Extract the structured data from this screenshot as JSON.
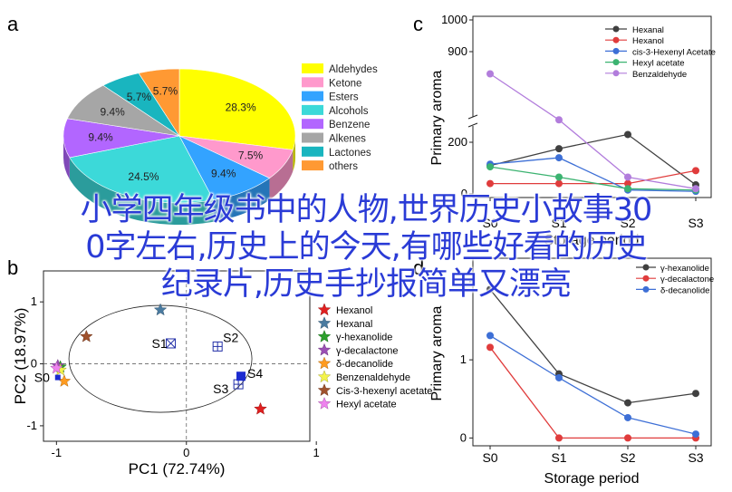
{
  "overlay": {
    "line1": "小学四年级书中的人物,世界历史小故事30",
    "line2": "0字左右,历史上的今天,有哪些好看的历史",
    "line3": "纪录片,历史手抄报简单又漂亮"
  },
  "chart_data": [
    {
      "panel": "a",
      "type": "pie",
      "title": "",
      "labels": [
        "Aldehydes",
        "Ketone",
        "Esters",
        "Alcohols",
        "Benzene",
        "Alkenes",
        "Lactones",
        "others"
      ],
      "values": [
        28.3,
        7.5,
        9.4,
        24.5,
        9.4,
        9.4,
        5.7,
        5.7
      ],
      "slice_labels": [
        "28.3%",
        "7.5%",
        "9.4%",
        "24.5%",
        "9.4%",
        "9.4%",
        "5.7%",
        "5.7%"
      ],
      "colors": [
        "#ffff00",
        "#ff99cc",
        "#33a3ff",
        "#3cd9d9",
        "#b266ff",
        "#a6a6a6",
        "#19b5bf",
        "#ff9933"
      ],
      "legend_position": "right"
    },
    {
      "panel": "b",
      "type": "scatter",
      "xlabel": "PC1 (72.74%)",
      "ylabel": "PC2 (18.97%)",
      "xlim": [
        -1.1,
        0.95
      ],
      "ylim": [
        -1.25,
        1.5
      ],
      "xticks": [
        "-1",
        "0",
        "1"
      ],
      "yticks": [
        "-1",
        "0",
        "1"
      ],
      "series": [
        {
          "name": "Hexanol",
          "color": "#e02020",
          "symbol": "star",
          "x": 0.57,
          "y": -0.73
        },
        {
          "name": "Hexanal",
          "color": "#4a7ba0",
          "symbol": "star",
          "x": -0.2,
          "y": 0.87
        },
        {
          "name": "γ-hexanolide",
          "color": "#2ca02c",
          "symbol": "star",
          "x": -0.97,
          "y": -0.05
        },
        {
          "name": "γ-decalactone",
          "color": "#9b4fb5",
          "symbol": "star",
          "x": -0.99,
          "y": -0.03
        },
        {
          "name": "δ-decanolide",
          "color": "#ff9b1f",
          "symbol": "star",
          "x": -0.94,
          "y": -0.28
        },
        {
          "name": "Benzenaldehyde",
          "color": "#f3f34a",
          "symbol": "star",
          "x": -0.97,
          "y": -0.1
        },
        {
          "name": "Cis-3-hexenyl acetate",
          "color": "#a0522d",
          "symbol": "star",
          "x": -0.77,
          "y": 0.44
        },
        {
          "name": "Hexyl acetate",
          "color": "#ee82ee",
          "symbol": "star",
          "x": -1.0,
          "y": -0.07
        }
      ],
      "samples": [
        {
          "label": "S0",
          "x": -0.99,
          "y": -0.22
        },
        {
          "label": "S1",
          "x": -0.12,
          "y": 0.33
        },
        {
          "label": "S2",
          "x": 0.24,
          "y": 0.28
        },
        {
          "label": "S3",
          "x": 0.4,
          "y": -0.33
        },
        {
          "label": "S4",
          "x": 0.42,
          "y": -0.2
        }
      ],
      "legend_position": "right"
    },
    {
      "panel": "c",
      "type": "line",
      "xlabel": "Storage period",
      "ylabel": "Primary aroma",
      "categories": [
        "S0",
        "S1",
        "S2",
        "S3"
      ],
      "y_broken_axis": true,
      "yticks": [
        "0",
        "200",
        "900",
        "1000"
      ],
      "series": [
        {
          "name": "Hexanal",
          "color": "#404040",
          "values": [
            110,
            175,
            230,
            35
          ]
        },
        {
          "name": "Hexanol",
          "color": "#e03c3c",
          "values": [
            40,
            40,
            40,
            90
          ]
        },
        {
          "name": "cis-3-Hexenyl Acetate",
          "color": "#3d6fd6",
          "values": [
            115,
            140,
            15,
            10
          ]
        },
        {
          "name": "Hexyl acetate",
          "color": "#3cb371",
          "values": [
            105,
            65,
            20,
            15
          ]
        },
        {
          "name": "Benzaldehyde",
          "color": "#b27ddc",
          "values": [
            830,
            685,
            65,
            20
          ]
        }
      ],
      "legend_position": "top-right"
    },
    {
      "panel": "d",
      "type": "line",
      "xlabel": "Storage period",
      "ylabel": "Primary aroma",
      "categories": [
        "S0",
        "S1",
        "S2",
        "S3"
      ],
      "ylim": [
        -0.1,
        2.3
      ],
      "yticks": [
        "0",
        "1",
        "2"
      ],
      "series": [
        {
          "name": "γ-hexanolide",
          "color": "#404040",
          "values": [
            1.9,
            0.82,
            0.45,
            0.57
          ]
        },
        {
          "name": "γ-decalactone",
          "color": "#e03c3c",
          "values": [
            1.16,
            0.0,
            0.0,
            0.0
          ]
        },
        {
          "name": "δ-decanolide",
          "color": "#3d6fd6",
          "values": [
            1.31,
            0.77,
            0.26,
            0.05
          ]
        }
      ],
      "legend_position": "top-right"
    }
  ],
  "panel_letters": {
    "a": "a",
    "b": "b",
    "c": "c",
    "d": "d"
  }
}
